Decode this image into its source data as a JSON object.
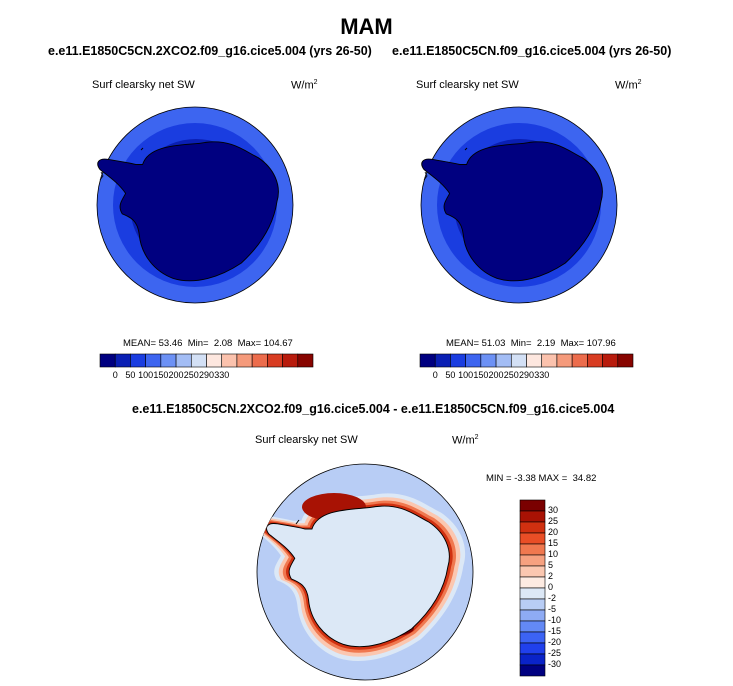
{
  "page": {
    "title": "MAM"
  },
  "panels": [
    {
      "case_title": "e.e11.E1850C5CN.2XCO2.f09_g16.cice5.004 (yrs 26-50)",
      "variable": "Surf clearsky net SW",
      "units_base": "W/m",
      "units_exp": "2",
      "stats": {
        "mean_label": "MEAN=",
        "mean": "53.46",
        "min_label": "Min=",
        "min": "2.08",
        "max_label": "Max=",
        "max": "104.67"
      }
    },
    {
      "case_title": "e.e11.E1850C5CN.f09_g16.cice5.004 (yrs 26-50)",
      "variable": "Surf clearsky net SW",
      "units_base": "W/m",
      "units_exp": "2",
      "stats": {
        "mean_label": "MEAN=",
        "mean": "51.03",
        "min_label": "Min=",
        "min": "2.19",
        "max_label": "Max=",
        "max": "107.96"
      }
    }
  ],
  "diff_panel": {
    "case_title": "e.e11.E1850C5CN.2XCO2.f09_g16.cice5.004 - e.e11.E1850C5CN.f09_g16.cice5.004",
    "variable": "Surf clearsky net SW",
    "units_base": "W/m",
    "units_exp": "2",
    "stats": {
      "min_label": "MIN =",
      "min": "-3.38",
      "max_label": "MAX =",
      "max": "34.82"
    }
  },
  "abs_colorbar": {
    "colors": [
      "#000080",
      "#0a1fb4",
      "#1a3de0",
      "#3d65f0",
      "#6c91f5",
      "#a3bdf5",
      "#d3e0f5",
      "#fde7df",
      "#fbc2ad",
      "#f59a7b",
      "#ec6c4c",
      "#d83c22",
      "#b81b0c",
      "#870400"
    ],
    "labels": [
      "0",
      "50",
      "100",
      "150",
      "200",
      "250",
      "290",
      "330"
    ]
  },
  "diff_colorbar": {
    "colors": [
      "#000080",
      "#0a23c8",
      "#2040ec",
      "#3c63f4",
      "#6389f5",
      "#8eabf4",
      "#b8cdf5",
      "#dce8f6",
      "#fdebe2",
      "#fbc7b0",
      "#f6a180",
      "#f0784f",
      "#e94e26",
      "#d03010",
      "#a81204",
      "#7a0000"
    ],
    "labels": [
      "30",
      "25",
      "20",
      "15",
      "10",
      "5",
      "2",
      "0",
      "-2",
      "-5",
      "-10",
      "-15",
      "-20",
      "-25",
      "-30"
    ]
  }
}
